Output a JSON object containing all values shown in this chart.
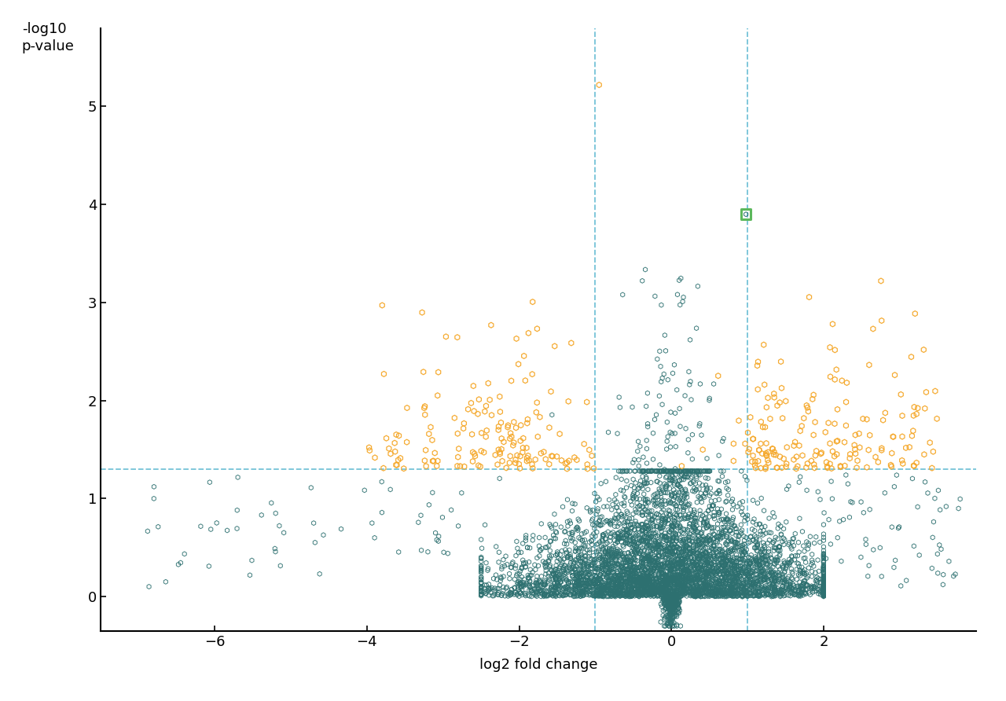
{
  "title": "",
  "xlabel": "log2 fold change",
  "ylabel": "-log10\np-value",
  "xlim": [
    -7.5,
    4.0
  ],
  "ylim": [
    -0.35,
    5.8
  ],
  "xticks": [
    -6,
    -4,
    -2,
    0,
    2
  ],
  "yticks": [
    0,
    1,
    2,
    3,
    4,
    5
  ],
  "vlines": [
    -1.0,
    1.0
  ],
  "hline": 1.3,
  "teal_color": "#2d7070",
  "orange_color": "#f5a82a",
  "green_highlight_color": "#5cb85c",
  "dashed_line_color": "#75c3d8",
  "background_color": "#ffffff",
  "seed": 42,
  "special_point_x": 0.98,
  "special_point_y": 3.9,
  "high_orange_x": -0.95,
  "high_orange_y": 5.22
}
